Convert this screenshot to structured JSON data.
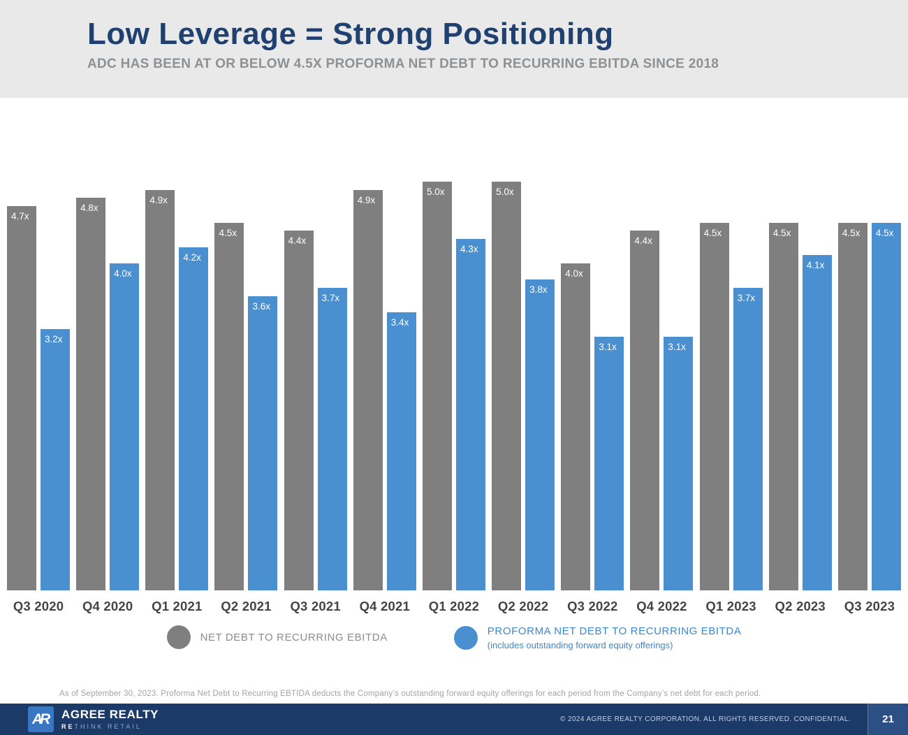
{
  "header": {
    "title": "Low Leverage = Strong Positioning",
    "subtitle": "ADC HAS BEEN AT OR BELOW 4.5X PROFORMA NET DEBT TO RECURRING EBITDA SINCE 2018"
  },
  "legend": {
    "series1_label": "NET DEBT TO RECURRING EBITDA",
    "series2_label": "PROFORMA NET DEBT TO RECURRING EBITDA",
    "series2_note": "(includes outstanding forward equity offerings)"
  },
  "footnote": "As of September 30, 2023. Proforma Net Debt to Recurring EBTIDA deducts the Company’s outstanding forward equity offerings for each period from the Company’s net debt for each period.",
  "footer": {
    "logo_monogram": "AR",
    "brand": "AGREE REALTY",
    "tagline_highlight": "RE",
    "tagline_rest": "THINK RETAIL",
    "copyright": "© 2024 AGREE REALTY CORPORATION. ALL RIGHTS RESERVED. CONFIDENTIAL.",
    "page_number": "21"
  },
  "colors": {
    "gray_bar": "#7f7f7f",
    "blue_bar": "#4a90d0",
    "title_navy": "#20406f",
    "footer_navy": "#1c3a68"
  },
  "chart_data": {
    "type": "bar",
    "title": "Low Leverage = Strong Positioning",
    "categories": [
      "Q3 2020",
      "Q4 2020",
      "Q1 2021",
      "Q2 2021",
      "Q3 2021",
      "Q4 2021",
      "Q1 2022",
      "Q2 2022",
      "Q3 2022",
      "Q4 2022",
      "Q1 2023",
      "Q2 2023",
      "Q3 2023"
    ],
    "series": [
      {
        "name": "NET DEBT TO RECURRING EBITDA",
        "color": "#7f7f7f",
        "values": [
          4.7,
          4.8,
          4.9,
          4.5,
          4.4,
          4.9,
          5.0,
          5.0,
          4.0,
          4.4,
          4.5,
          4.5,
          4.5
        ]
      },
      {
        "name": "PROFORMA NET DEBT TO RECURRING EBITDA",
        "color": "#4a90d0",
        "values": [
          3.2,
          4.0,
          4.2,
          3.6,
          3.7,
          3.4,
          4.3,
          3.8,
          3.1,
          3.1,
          3.7,
          4.1,
          4.5
        ]
      }
    ],
    "value_suffix": "x",
    "ylim": [
      0,
      5.2
    ],
    "grid": false,
    "legend_position": "bottom",
    "value_labels": "inside-top"
  }
}
